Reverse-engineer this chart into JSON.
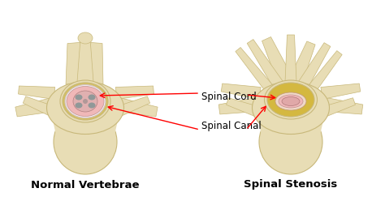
{
  "background_color": "#ffffff",
  "label_left": "Normal Vertebrae",
  "label_right": "Spinal Stenosis",
  "annotation_canal": "Spinal Canal",
  "annotation_cord": "Spinal Cord",
  "bone_color": "#e8ddb5",
  "bone_light": "#f0eacc",
  "bone_dark": "#c8b87a",
  "bone_shadow": "#a89858",
  "canal_pink": "#f0b8b8",
  "canal_white": "#f8f0f0",
  "canal_ring_yellow": "#d4c060",
  "canal_ring_light": "#e8d870",
  "cord_pink": "#d89090",
  "cord_gray": "#909090",
  "stenosis_yellow": "#d4b840",
  "label_fontsize": 9.5,
  "annotation_fontsize": 8.5,
  "fig_width": 4.74,
  "fig_height": 2.48,
  "dpi": 100
}
